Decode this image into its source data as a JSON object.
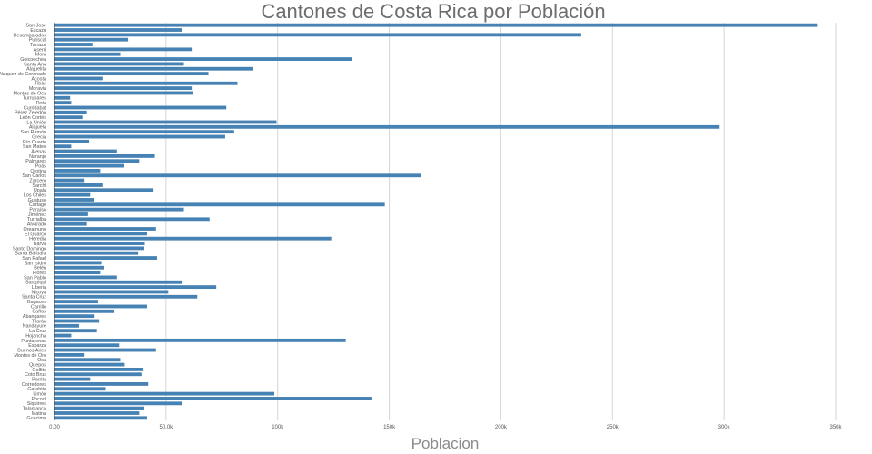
{
  "chart_data": {
    "type": "bar",
    "orientation": "horizontal",
    "title": "Cantones de Costa Rica por Población",
    "xlabel": "Poblacion",
    "ylabel": "",
    "xlim": [
      0,
      350000
    ],
    "xticks": [
      0,
      50000,
      100000,
      150000,
      200000,
      250000,
      300000,
      350000
    ],
    "xtick_labels": [
      "0.00",
      "50.0k",
      "100k",
      "150k",
      "200k",
      "250k",
      "300k",
      "350k"
    ],
    "grid": true,
    "bar_color": "#4682b4",
    "categories": [
      "San José",
      "Escazú",
      "Desamparados",
      "Puriscal",
      "Tarrazú",
      "Aserrí",
      "Mora",
      "Goicoechea",
      "Santa Ana",
      "Alajuelita",
      "Vásquez de Coronado",
      "Acosta",
      "Tibás",
      "Moravia",
      "Montes de Oca",
      "Turrubares",
      "Dota",
      "Curridabat",
      "Pérez Zeledón",
      "León Cortés",
      "La Unión",
      "Alajuela",
      "San Ramón",
      "Grecia",
      "Río Cuarto",
      "San Mateo",
      "Atenas",
      "Naranjo",
      "Palmares",
      "Poás",
      "Orotina",
      "San Carlos",
      "Zarcero",
      "Sarchí",
      "Upala",
      "Los Chiles",
      "Guatuso",
      "Cartago",
      "Paraíso",
      "Jiménez",
      "Turrialba",
      "Alvarado",
      "Oreamuno",
      "El Guarco",
      "Heredia",
      "Barva",
      "Santo Domingo",
      "Santa Bárbara",
      "San Rafael",
      "San Isidro",
      "Belén",
      "Flores",
      "San Pablo",
      "Sarapiquí",
      "Liberia",
      "Nicoya",
      "Santa Cruz",
      "Bagaces",
      "Carrillo",
      "Cañas",
      "Abangares",
      "Tilarán",
      "Nandayure",
      "La Cruz",
      "Hojancha",
      "Puntarenas",
      "Esparza",
      "Buenos Aires",
      "Montes de Oro",
      "Osa",
      "Quepos",
      "Golfito",
      "Coto Brus",
      "Parrita",
      "Corredores",
      "Garabito",
      "Limón",
      "Pococí",
      "Siquirres",
      "Talamanca",
      "Matina",
      "Guácimo"
    ],
    "values": [
      342000,
      57000,
      236000,
      33000,
      17000,
      61500,
      29500,
      133500,
      58000,
      89000,
      69000,
      21500,
      82000,
      61500,
      62000,
      7000,
      7500,
      77000,
      14500,
      12500,
      99500,
      298000,
      80500,
      76500,
      15500,
      7500,
      28000,
      45000,
      38000,
      31000,
      20500,
      164000,
      13500,
      21500,
      44000,
      16000,
      17500,
      148000,
      58000,
      15000,
      69500,
      14500,
      45500,
      41500,
      124000,
      40500,
      40000,
      37500,
      46000,
      21000,
      22000,
      20500,
      28000,
      57000,
      72500,
      51000,
      64000,
      19500,
      41500,
      26500,
      18000,
      20000,
      11000,
      19000,
      7500,
      130500,
      29000,
      45500,
      13500,
      29500,
      31500,
      39500,
      39000,
      16000,
      42000,
      23000,
      98500,
      142000,
      57000,
      40000,
      38000,
      41500
    ]
  }
}
